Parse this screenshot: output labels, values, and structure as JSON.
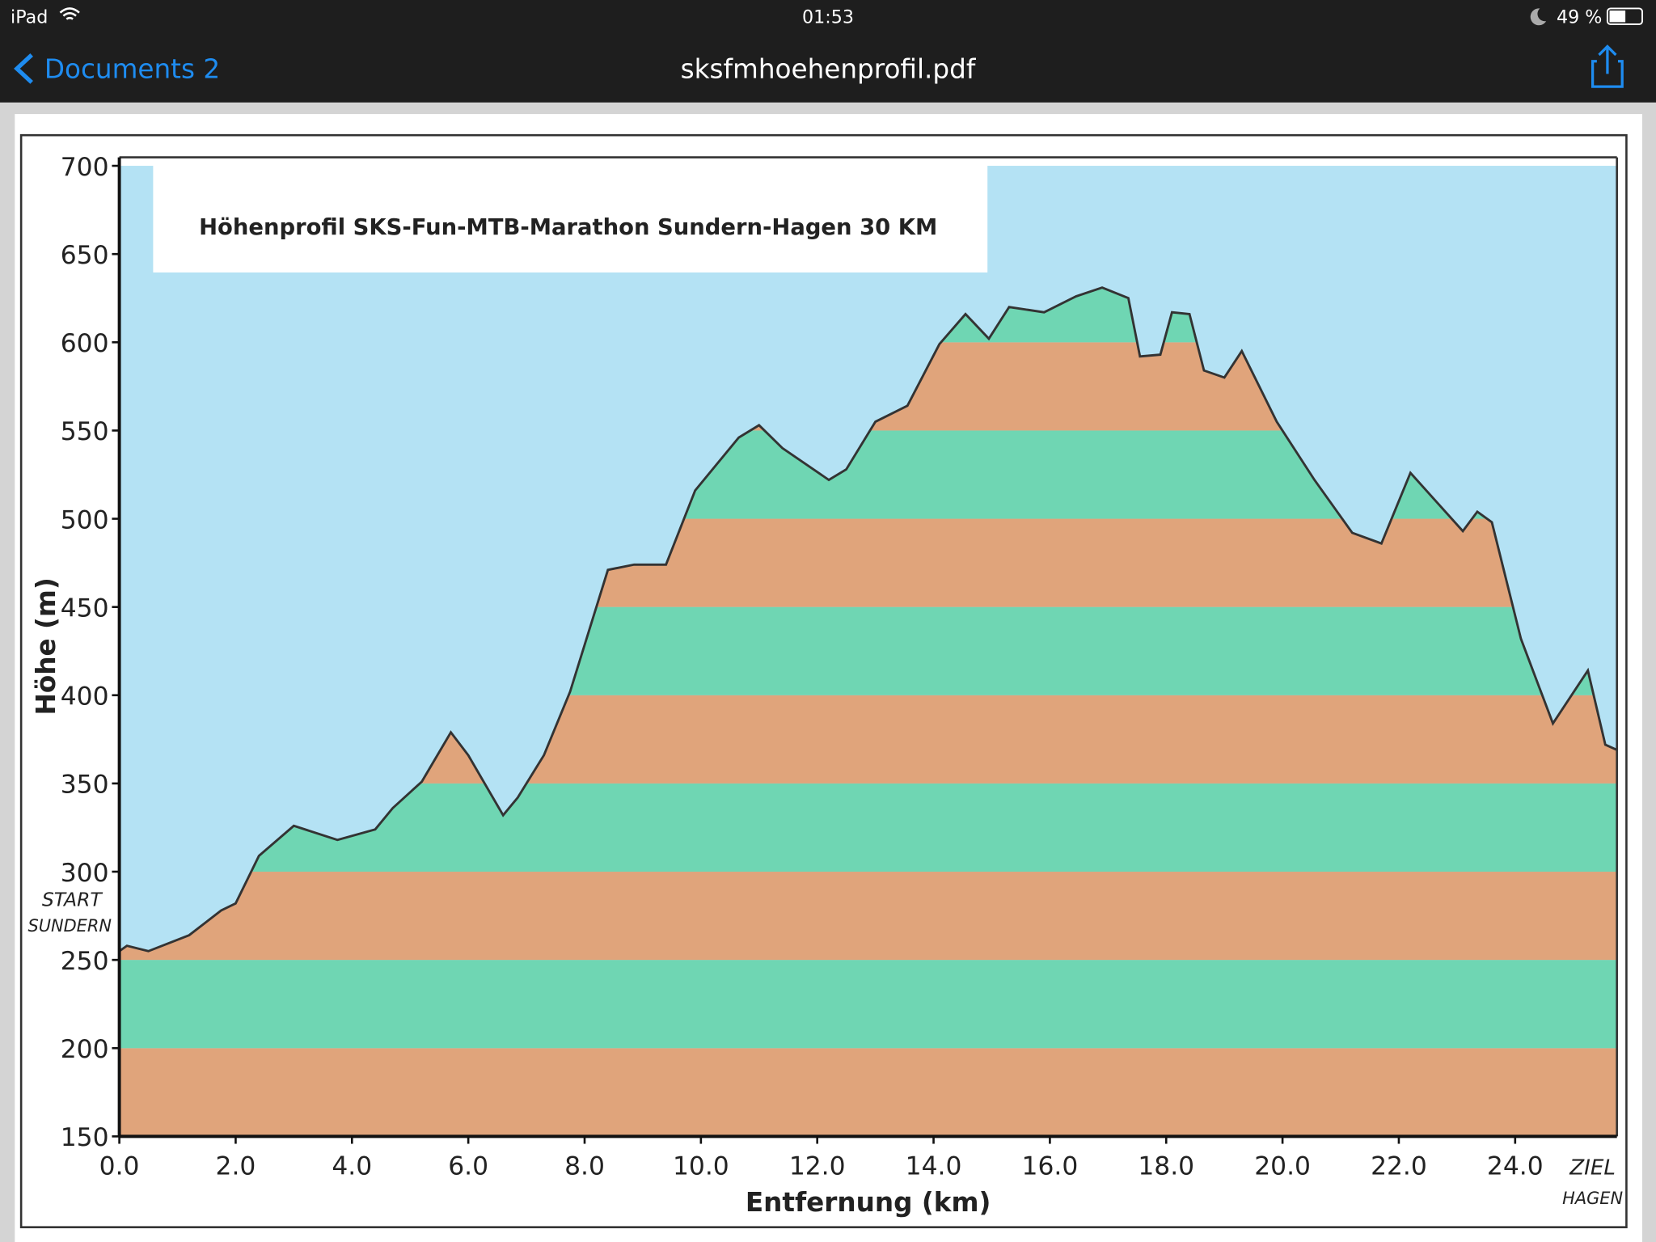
{
  "status_bar": {
    "carrier": "iPad",
    "time": "01:53",
    "battery": "49 %"
  },
  "nav_bar": {
    "back": "Documents 2",
    "title": "sksfmhoehenprofil.pdf"
  },
  "chart_data": {
    "type": "area",
    "title": "Höhenprofil SKS-Fun-MTB-Marathon Sundern-Hagen 30 KM",
    "xlabel": "Entfernung  (km)",
    "ylabel": "Höhe (m)",
    "annotations": [
      "START",
      "SUNDERN",
      "ZIEL",
      "HAGEN"
    ],
    "x": [
      0,
      0.13,
      0.5,
      1.2,
      1.75,
      2.0,
      2.4,
      3.0,
      3.75,
      4.4,
      4.7,
      5.2,
      5.7,
      6.0,
      6.6,
      6.85,
      7.3,
      7.75,
      8.4,
      8.85,
      9.4,
      9.9,
      10.65,
      11.0,
      11.4,
      12.2,
      12.5,
      13.0,
      13.55,
      14.1,
      14.55,
      14.95,
      15.3,
      15.9,
      16.45,
      16.9,
      17.35,
      17.55,
      17.9,
      18.1,
      18.4,
      18.65,
      19.0,
      19.3,
      19.9,
      20.55,
      21.2,
      21.7,
      22.2,
      23.1,
      23.35,
      23.6,
      24.1,
      24.65,
      25.25,
      25.55,
      25.75
    ],
    "values": [
      255,
      258,
      255,
      264,
      278,
      282,
      309,
      326,
      318,
      324,
      336,
      351,
      379,
      366,
      332,
      342,
      366,
      402,
      471,
      474,
      474,
      516,
      546,
      553,
      540,
      522,
      528,
      555,
      564,
      599,
      616,
      602,
      620,
      617,
      626,
      631,
      625,
      592,
      593,
      617,
      616,
      584,
      580,
      595,
      555,
      522,
      492,
      486,
      526,
      493,
      504,
      498,
      432,
      384,
      414,
      372,
      369
    ],
    "xlim": [
      0,
      25.75
    ],
    "ylim": [
      150,
      700
    ],
    "xticks": [
      {
        "value": 0,
        "label": "0.0"
      },
      {
        "value": 2,
        "label": "2.0"
      },
      {
        "value": 4,
        "label": "4.0"
      },
      {
        "value": 6,
        "label": "6.0"
      },
      {
        "value": 8,
        "label": "8.0"
      },
      {
        "value": 10,
        "label": "10.0"
      },
      {
        "value": 12,
        "label": "12.0"
      },
      {
        "value": 14,
        "label": "14.0"
      },
      {
        "value": 16,
        "label": "16.0"
      },
      {
        "value": 18,
        "label": "18.0"
      },
      {
        "value": 20,
        "label": "20.0"
      },
      {
        "value": 22,
        "label": "22.0"
      },
      {
        "value": 24,
        "label": "24.0"
      }
    ],
    "yticks": [
      150,
      200,
      250,
      300,
      350,
      400,
      450,
      500,
      550,
      600,
      650,
      700
    ],
    "background": "#b4e2f4",
    "band_colors": [
      "#e0a47b",
      "#6fd6b3"
    ],
    "line_color": "#333333"
  }
}
